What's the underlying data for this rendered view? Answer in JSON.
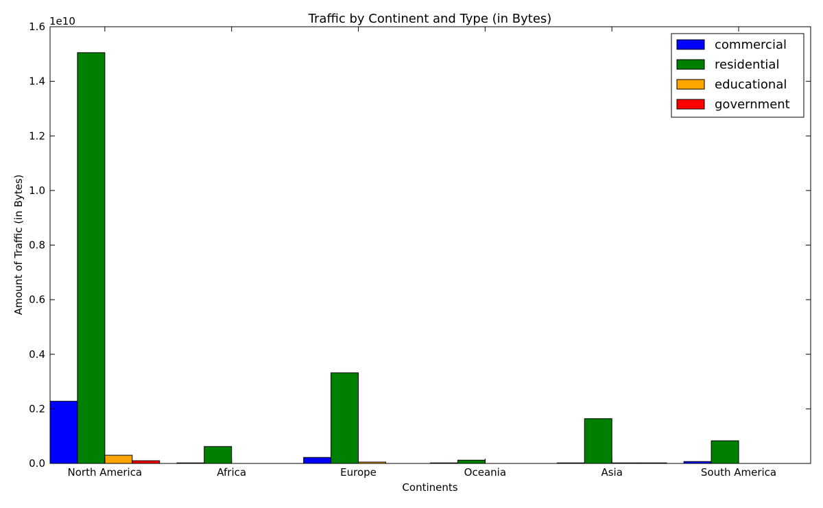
{
  "chart_data": {
    "type": "bar",
    "title": "Traffic by Continent and Type (in Bytes)",
    "xlabel": "Continents",
    "ylabel": "Amount of Traffic (in Bytes)",
    "y_offset_label": "1e10",
    "y_scale": 10000000000,
    "ylim": [
      0,
      1.6
    ],
    "yticks": [
      "0.0",
      "0.2",
      "0.4",
      "0.6",
      "0.8",
      "1.0",
      "1.2",
      "1.4",
      "1.6"
    ],
    "grid": false,
    "legend_position": "top-right",
    "categories": [
      "North America",
      "Africa",
      "Europe",
      "Oceania",
      "Asia",
      "South America"
    ],
    "series": [
      {
        "name": "commercial",
        "color": "#0000ff",
        "values": [
          0.228,
          0.002,
          0.022,
          0.002,
          0.002,
          0.007
        ]
      },
      {
        "name": "residential",
        "color": "#008000",
        "values": [
          1.505,
          0.062,
          0.332,
          0.012,
          0.164,
          0.083
        ]
      },
      {
        "name": "educational",
        "color": "#ffa500",
        "values": [
          0.03,
          0.0,
          0.005,
          0.0,
          0.002,
          0.0
        ]
      },
      {
        "name": "government",
        "color": "#ff0000",
        "values": [
          0.01,
          0.0,
          0.0,
          0.0,
          0.002,
          0.0
        ]
      }
    ]
  }
}
